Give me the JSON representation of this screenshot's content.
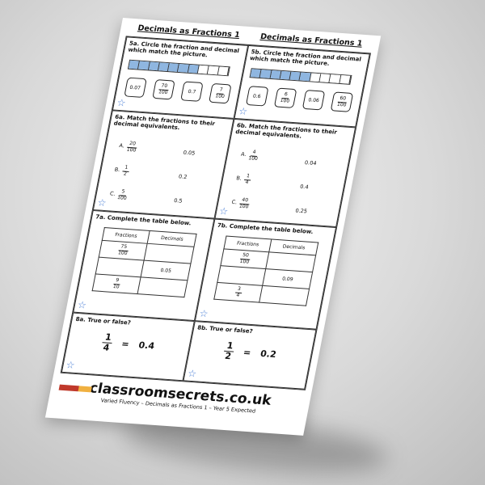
{
  "title": "Decimals as Fractions  1",
  "columns": [
    {
      "q5": {
        "label": "5a. Circle the fraction and decimal which match the picture.",
        "shaded": 7,
        "total": 10,
        "options": [
          {
            "text": "0.07"
          },
          {
            "n": "70",
            "d": "100"
          },
          {
            "text": "0.7"
          },
          {
            "n": "7",
            "d": "100"
          }
        ]
      },
      "q6": {
        "label": "6a. Match the fractions to their decimal equivalents.",
        "rows": [
          {
            "letter": "A.",
            "n": "20",
            "d": "100",
            "dec": "0.05"
          },
          {
            "letter": "B.",
            "n": "1",
            "d": "2",
            "dec": "0.2"
          },
          {
            "letter": "C.",
            "n": "5",
            "d": "100",
            "dec": "0.5"
          }
        ]
      },
      "q7": {
        "label": "7a. Complete the table below.",
        "headers": [
          "Fractions",
          "Decimals"
        ],
        "rows": [
          {
            "n": "75",
            "d": "100",
            "dec": ""
          },
          {
            "n": "",
            "d": "",
            "dec": "0.05"
          },
          {
            "n": "9",
            "d": "10",
            "dec": ""
          }
        ]
      },
      "q8": {
        "label": "8a. True or false?",
        "n": "1",
        "d": "4",
        "eq": "=",
        "dec": "0.4"
      }
    },
    {
      "q5": {
        "label": "5b. Circle the fraction and decimal which match the picture.",
        "shaded": 6,
        "total": 10,
        "options": [
          {
            "text": "0.6"
          },
          {
            "n": "6",
            "d": "100"
          },
          {
            "text": "0.06"
          },
          {
            "n": "60",
            "d": "100"
          }
        ]
      },
      "q6": {
        "label": "6b. Match the fractions to their decimal equivalents.",
        "rows": [
          {
            "letter": "A.",
            "n": "4",
            "d": "100",
            "dec": "0.04"
          },
          {
            "letter": "B.",
            "n": "1",
            "d": "4",
            "dec": "0.4"
          },
          {
            "letter": "C.",
            "n": "40",
            "d": "100",
            "dec": "0.25"
          }
        ]
      },
      "q7": {
        "label": "7b. Complete the table below.",
        "headers": [
          "Fractions",
          "Decimals"
        ],
        "rows": [
          {
            "n": "50",
            "d": "100",
            "dec": ""
          },
          {
            "n": "",
            "d": "",
            "dec": "0.09"
          },
          {
            "n": "3",
            "d": "4",
            "dec": ""
          }
        ]
      },
      "q8": {
        "label": "8b. True or false?",
        "n": "1",
        "d": "2",
        "eq": "=",
        "dec": "0.2"
      }
    }
  ],
  "footer": {
    "site": "classroomsecrets.co.uk",
    "subtitle": "Varied Fluency – Decimals as Fractions  1 – Year 5 Expected"
  },
  "colors": {
    "bar_fill": "#8fb6e0",
    "star": "#4a7fd6"
  },
  "icons": {
    "star": "star-icon"
  }
}
